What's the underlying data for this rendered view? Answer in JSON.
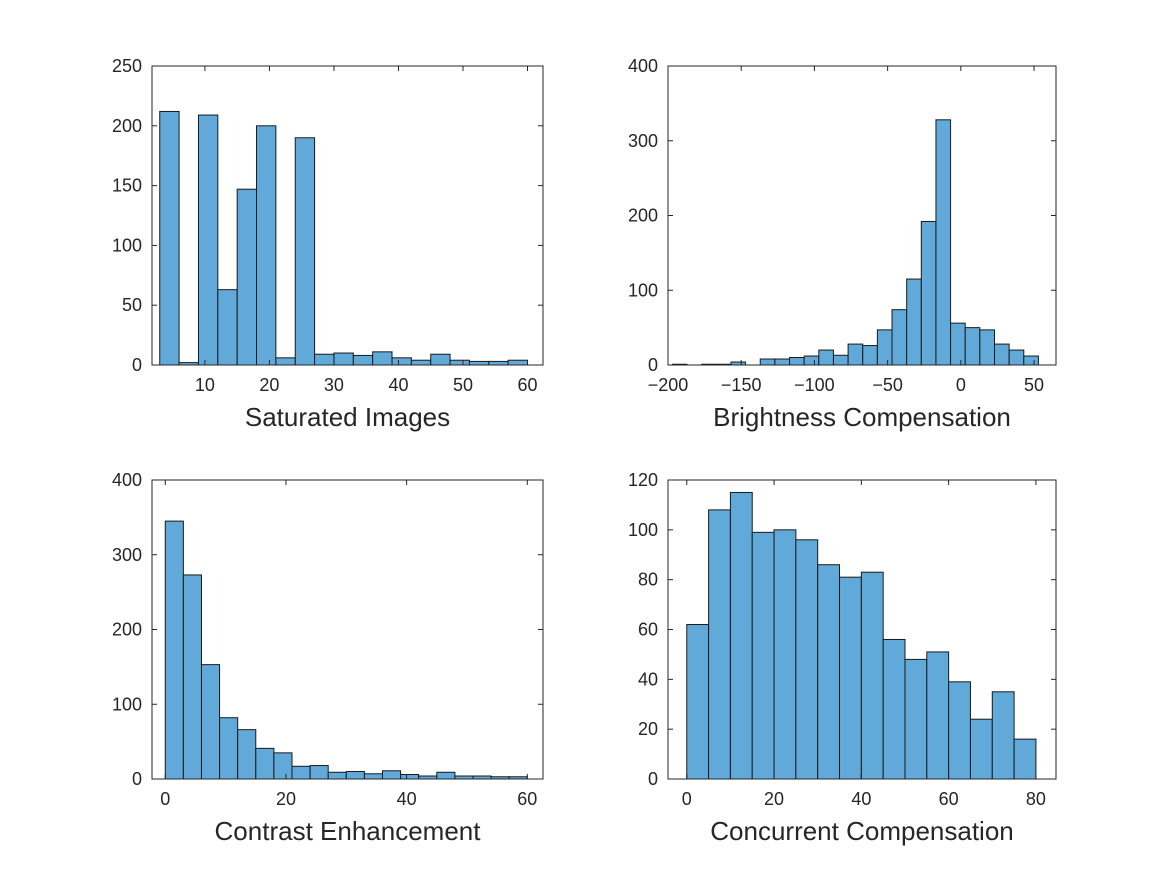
{
  "chart_data": [
    {
      "type": "bar",
      "xlabel": "Saturated Images",
      "xlim": [
        1.8,
        62.4
      ],
      "ylim": [
        0,
        250
      ],
      "xticks": [
        10,
        20,
        30,
        40,
        50,
        60
      ],
      "yticks": [
        0,
        50,
        100,
        150,
        200,
        250
      ],
      "bin_edges": [
        3,
        6,
        9,
        12,
        15,
        18,
        21,
        24,
        27,
        30,
        33,
        36,
        39,
        42,
        45,
        48,
        51,
        54,
        57,
        60
      ],
      "values": [
        212,
        2,
        209,
        63,
        147,
        200,
        6,
        190,
        9,
        10,
        8,
        11,
        6,
        4,
        9,
        4,
        3,
        3,
        4
      ],
      "bar_color": "#61a9d9"
    },
    {
      "type": "bar",
      "xlabel": "Brightness Compensation",
      "xlim": [
        -200,
        65
      ],
      "ylim": [
        0,
        400
      ],
      "xticks": [
        -200,
        -150,
        -100,
        -50,
        0,
        50
      ],
      "yticks": [
        0,
        100,
        200,
        300,
        400
      ],
      "bin_edges": [
        -197,
        -187,
        -177,
        -167,
        -157,
        -147,
        -137,
        -127,
        -117,
        -107,
        -97,
        -87,
        -77,
        -67,
        -57,
        -47,
        -37,
        -27,
        -17,
        -7,
        3,
        13,
        23,
        33,
        43,
        53,
        63
      ],
      "values": [
        1,
        0,
        1,
        1,
        4,
        0,
        8,
        8,
        10,
        12,
        20,
        13,
        28,
        26,
        47,
        74,
        115,
        192,
        328,
        56,
        50,
        47,
        28,
        20,
        12,
        0
      ],
      "bar_color": "#61a9d9"
    },
    {
      "type": "bar",
      "xlabel": "Contrast Enhancement",
      "xlim": [
        -2.2,
        62.6
      ],
      "ylim": [
        0,
        400
      ],
      "xticks": [
        0,
        20,
        40,
        60
      ],
      "yticks": [
        0,
        100,
        200,
        300,
        400
      ],
      "bin_edges": [
        0,
        3,
        6,
        9,
        12,
        15,
        18,
        21,
        24,
        27,
        30,
        33,
        36,
        39,
        42,
        45,
        48,
        51,
        54,
        57,
        60
      ],
      "values": [
        345,
        273,
        153,
        82,
        66,
        41,
        35,
        17,
        18,
        9,
        10,
        7,
        11,
        6,
        4,
        9,
        4,
        4,
        3,
        3
      ],
      "bar_color": "#61a9d9"
    },
    {
      "type": "bar",
      "xlabel": "Concurrent Compensation",
      "xlim": [
        -4.3,
        84.6
      ],
      "ylim": [
        0,
        120
      ],
      "xticks": [
        0,
        20,
        40,
        60,
        80
      ],
      "yticks": [
        0,
        20,
        40,
        60,
        80,
        100,
        120
      ],
      "bin_edges": [
        0,
        5,
        10,
        15,
        20,
        25,
        30,
        35,
        40,
        45,
        50,
        55,
        60,
        65,
        70,
        75,
        80
      ],
      "values": [
        62,
        108,
        115,
        99,
        100,
        96,
        86,
        81,
        83,
        56,
        48,
        51,
        39,
        24,
        35,
        16
      ],
      "bar_color": "#61a9d9"
    }
  ]
}
